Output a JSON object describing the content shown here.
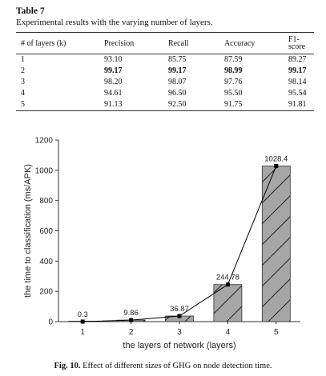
{
  "table": {
    "title": "Table 7",
    "caption": "Experimental results with the varying number of layers.",
    "headers": [
      "# of layers (k)",
      "Precision",
      "Recall",
      "Accuracy",
      "F1-score"
    ],
    "rows": [
      [
        "1",
        "93.10",
        "85.75",
        "87.59",
        "89.27"
      ],
      [
        "2",
        "99.17",
        "99.17",
        "98.99",
        "99.17"
      ],
      [
        "3",
        "98.20",
        "98.07",
        "97.76",
        "98.14"
      ],
      [
        "4",
        "94.61",
        "96.50",
        "95.50",
        "95.54"
      ],
      [
        "5",
        "91.13",
        "92.50",
        "91.75",
        "91.81"
      ]
    ],
    "bold_row_index": 1
  },
  "chart_data": {
    "type": "bar",
    "categories": [
      "1",
      "2",
      "3",
      "4",
      "5"
    ],
    "values": [
      0.3,
      9.86,
      36.87,
      244.78,
      1028.4
    ],
    "data_labels": [
      "0.3",
      "9.86",
      "36.87",
      "244.78",
      "1028.4"
    ],
    "line_overlay": true,
    "xlabel": "the layers of network (layers)",
    "ylabel": "the time to classification (ms/APK)",
    "ylim": [
      0,
      1200
    ],
    "yticks": [
      "0",
      "200",
      "400",
      "600",
      "800",
      "1000",
      "1200"
    ],
    "grid": false,
    "bar_fill": "#a6a6a6",
    "bar_pattern": "diagonal-hatch"
  },
  "figure_caption": {
    "label": "Fig. 10.",
    "text": "Effect of different sizes of GHG on node detection time."
  }
}
